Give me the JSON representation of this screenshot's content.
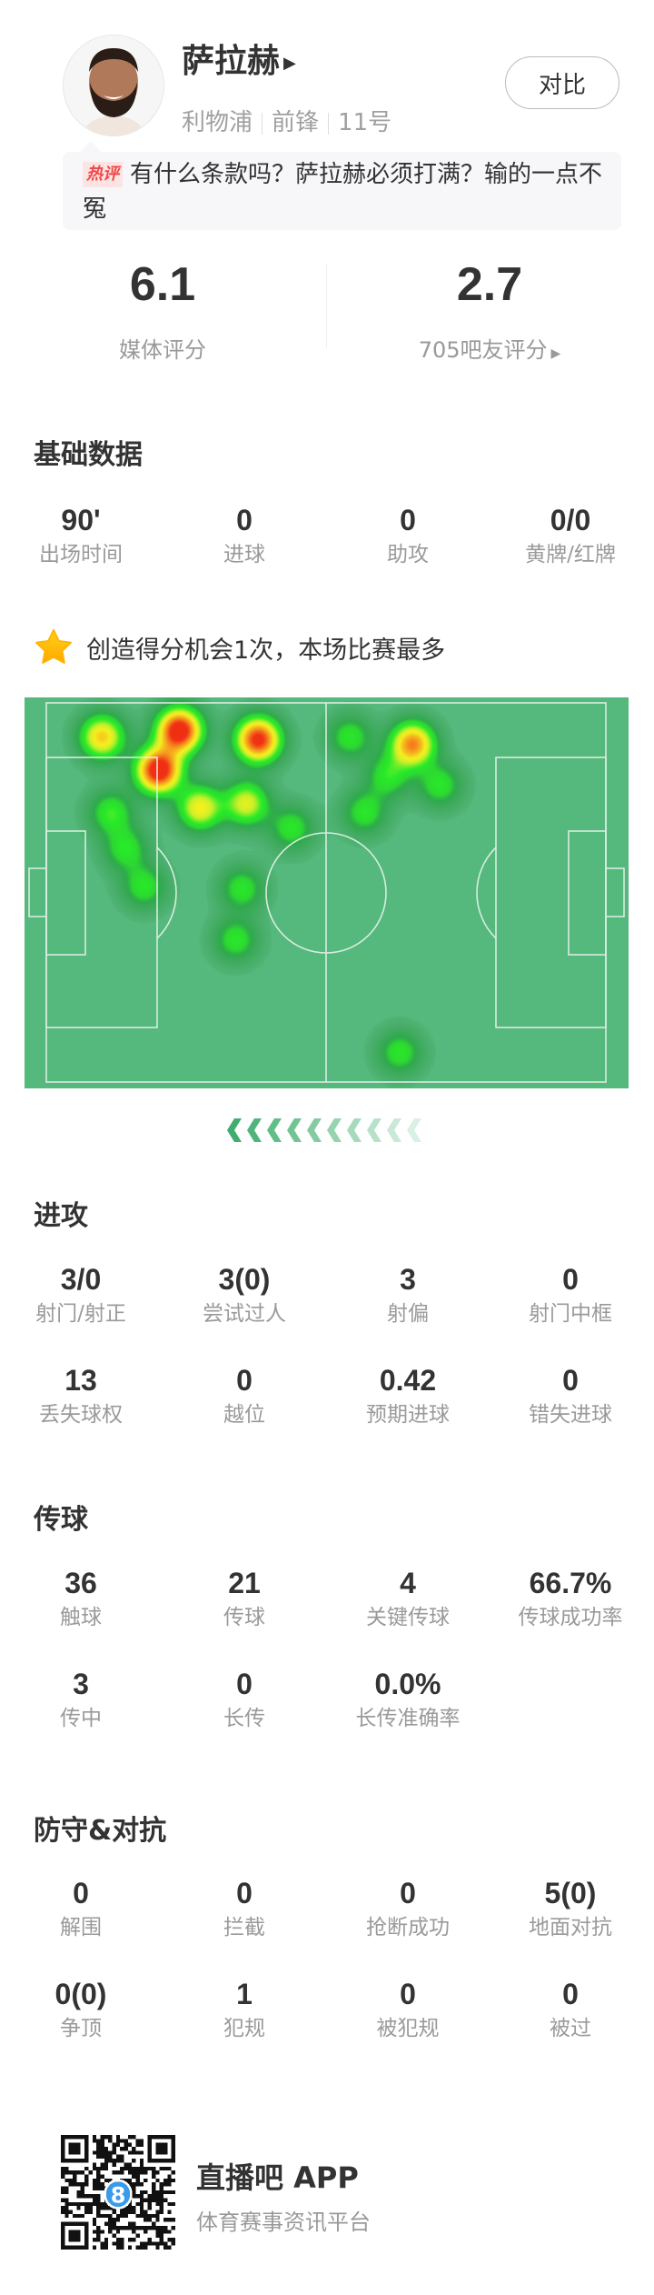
{
  "player": {
    "name": "萨拉赫",
    "team": "利物浦",
    "position": "前锋",
    "number": "11号",
    "compare_label": "对比"
  },
  "hot_comment": {
    "tag": "热评",
    "text": "有什么条款吗？萨拉赫必须打满？输的一点不冤"
  },
  "ratings": {
    "media": {
      "value": "6.1",
      "label": "媒体评分"
    },
    "fans": {
      "value": "2.7",
      "label": "705吧友评分"
    }
  },
  "highlight": {
    "icon": "star-icon",
    "text": "创造得分机会1次，本场比赛最多",
    "color": "#ffb400"
  },
  "sections": [
    {
      "title": "基础数据",
      "rows": [
        [
          {
            "value": "90'",
            "label": "出场时间"
          },
          {
            "value": "0",
            "label": "进球"
          },
          {
            "value": "0",
            "label": "助攻"
          },
          {
            "value": "0/0",
            "label": "黄牌/红牌"
          }
        ]
      ]
    },
    {
      "title": "进攻",
      "rows": [
        [
          {
            "value": "3/0",
            "label": "射门/射正"
          },
          {
            "value": "3(0)",
            "label": "尝试过人"
          },
          {
            "value": "3",
            "label": "射偏"
          },
          {
            "value": "0",
            "label": "射门中框"
          }
        ],
        [
          {
            "value": "13",
            "label": "丢失球权"
          },
          {
            "value": "0",
            "label": "越位"
          },
          {
            "value": "0.42",
            "label": "预期进球"
          },
          {
            "value": "0",
            "label": "错失进球"
          }
        ]
      ]
    },
    {
      "title": "传球",
      "rows": [
        [
          {
            "value": "36",
            "label": "触球"
          },
          {
            "value": "21",
            "label": "传球"
          },
          {
            "value": "4",
            "label": "关键传球"
          },
          {
            "value": "66.7%",
            "label": "传球成功率"
          }
        ],
        [
          {
            "value": "3",
            "label": "传中"
          },
          {
            "value": "0",
            "label": "长传"
          },
          {
            "value": "0.0%",
            "label": "长传准确率"
          }
        ]
      ]
    },
    {
      "title": "防守&对抗",
      "rows": [
        [
          {
            "value": "0",
            "label": "解围"
          },
          {
            "value": "0",
            "label": "拦截"
          },
          {
            "value": "0",
            "label": "抢断成功"
          },
          {
            "value": "5(0)",
            "label": "地面对抗"
          }
        ],
        [
          {
            "value": "0(0)",
            "label": "争顶"
          },
          {
            "value": "1",
            "label": "犯规"
          },
          {
            "value": "0",
            "label": "被犯规"
          },
          {
            "value": "0",
            "label": "被过"
          }
        ]
      ]
    }
  ],
  "heatmap": {
    "pitch_color": "#55b87c",
    "points": [
      {
        "x": 9.9,
        "y": 8.9,
        "w": 0.62
      },
      {
        "x": 23.7,
        "y": 7.2,
        "w": 1.0
      },
      {
        "x": 20.0,
        "y": 17.7,
        "w": 1.0
      },
      {
        "x": 37.8,
        "y": 9.6,
        "w": 0.92
      },
      {
        "x": 65.4,
        "y": 10.8,
        "w": 0.75
      },
      {
        "x": 54.2,
        "y": 8.9,
        "w": 0.3
      },
      {
        "x": 27.4,
        "y": 27.6,
        "w": 0.55
      },
      {
        "x": 35.7,
        "y": 26.4,
        "w": 0.5
      },
      {
        "x": 11.5,
        "y": 28.8,
        "w": 0.33
      },
      {
        "x": 14.1,
        "y": 38.4,
        "w": 0.3
      },
      {
        "x": 43.8,
        "y": 32.9,
        "w": 0.3
      },
      {
        "x": 61.0,
        "y": 19.2,
        "w": 0.3
      },
      {
        "x": 70.3,
        "y": 21.6,
        "w": 0.3
      },
      {
        "x": 56.8,
        "y": 28.8,
        "w": 0.3
      },
      {
        "x": 17.4,
        "y": 48.4,
        "w": 0.3
      },
      {
        "x": 34.9,
        "y": 48.9,
        "w": 0.3
      },
      {
        "x": 33.8,
        "y": 62.4,
        "w": 0.3
      },
      {
        "x": 63.1,
        "y": 92.1,
        "w": 0.3
      }
    ]
  },
  "footer": {
    "app_name": "直播吧 APP",
    "tagline": "体育赛事资讯平台",
    "qr_badge": "8"
  }
}
